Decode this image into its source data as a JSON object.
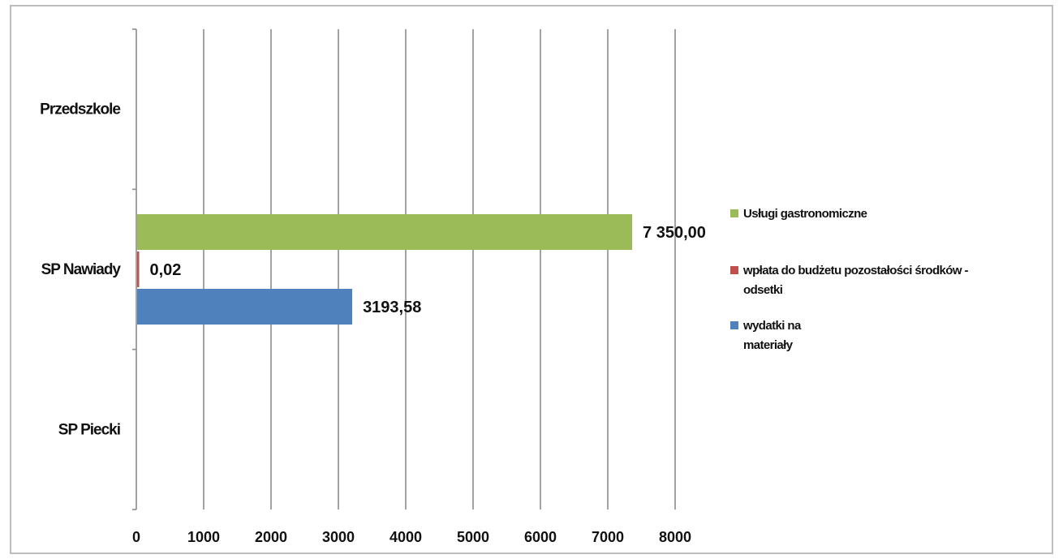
{
  "chart_data": {
    "type": "bar",
    "orientation": "horizontal",
    "categories": [
      "Przedszkole",
      "SP Nawiady",
      "SP Piecki"
    ],
    "series": [
      {
        "name": "Usługi gastronomiczne",
        "color": "#9bbb59",
        "values": [
          null,
          7350.0,
          null
        ],
        "labels": [
          null,
          "7 350,00",
          null
        ]
      },
      {
        "name": "wpłata do budżetu pozostałości środków - odsetki",
        "color": "#c0504d",
        "values": [
          null,
          0.02,
          null
        ],
        "labels": [
          null,
          "0,02",
          null
        ]
      },
      {
        "name": "wydatki na materiały",
        "color": "#4f81bd",
        "values": [
          null,
          3193.58,
          null
        ],
        "labels": [
          null,
          "3193,58",
          null
        ]
      }
    ],
    "xlim": [
      0,
      8000
    ],
    "xticks": [
      "0",
      "1000",
      "2000",
      "3000",
      "4000",
      "5000",
      "6000",
      "7000",
      "8000"
    ],
    "xticks_values": [
      0,
      1000,
      2000,
      3000,
      4000,
      5000,
      6000,
      7000,
      8000
    ],
    "grid": true,
    "legend_position": "right",
    "legend_lines": [
      [
        "Usługi gastronomiczne"
      ],
      [
        "wpłata do budżetu pozostałości środków -",
        "odsetki"
      ],
      [
        "wydatki na",
        "materiały"
      ]
    ]
  }
}
